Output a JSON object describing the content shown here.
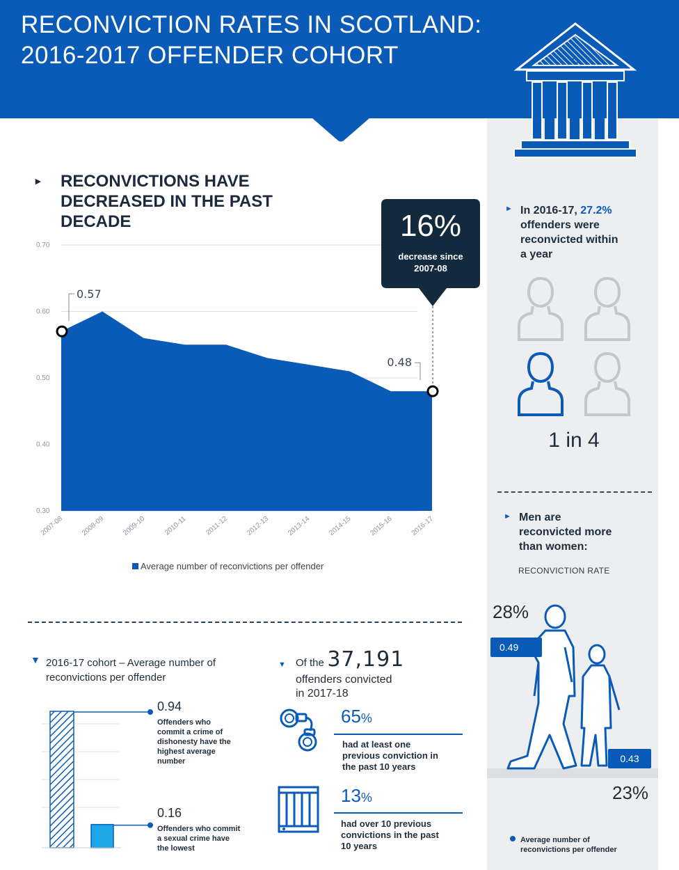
{
  "header": {
    "title_line1": "RECONVICTION RATES IN SCOTLAND:",
    "title_line2": "2016-2017 OFFENDER COHORT"
  },
  "main_chart": {
    "heading_line1": "RECONVICTIONS HAVE",
    "heading_line2": "DECREASED  IN THE PAST",
    "heading_line3": "DECADE",
    "callout_value": "16%",
    "callout_text_line1": "decrease since",
    "callout_text_line2": "2007-08",
    "first_label": "0.57",
    "last_label": "0.48",
    "legend": "Average number of reconvictions per offender"
  },
  "chart_data": [
    {
      "type": "area",
      "x": [
        "2007-08",
        "2008-09",
        "2009-10",
        "2010-11",
        "2011-12",
        "2012-13",
        "2013-14",
        "2014-15",
        "2015-16",
        "2016-17"
      ],
      "series": [
        {
          "name": "Average number of reconvictions per offender",
          "values": [
            0.57,
            0.6,
            0.56,
            0.55,
            0.55,
            0.53,
            0.52,
            0.51,
            0.48,
            0.48
          ]
        }
      ],
      "yticks": [
        "0.70",
        "0.60",
        "0.50",
        "0.40",
        "0.30"
      ],
      "ylim": [
        0.3,
        0.7
      ],
      "grid": true,
      "legend_position": "bottom",
      "color": "#0a5bb8"
    },
    {
      "type": "bar",
      "categories": [
        "Offenders who commit a crime of dishonesty",
        "Offenders who commit a sexual crime"
      ],
      "values": [
        0.94,
        0.16
      ],
      "title": "2016-17 cohort – Average  number  of reconvictions  per offender",
      "colors": [
        "#0a5bb8",
        "#1ea7e8"
      ]
    }
  ],
  "cohort": {
    "heading_line1": "2016-17 cohort – Average  number  of",
    "heading_line2": "reconvictions  per offender",
    "high_value": "0.94",
    "high_desc_line1": "Offenders who",
    "high_desc_line2": "commit a crime  of",
    "high_desc_line3": "dishonesty have the",
    "high_desc_line4": "highest  average",
    "high_desc_line5": "number",
    "low_value": "0.16",
    "low_desc_line1": "Offenders who commit",
    "low_desc_line2": "a  sexual  crime have",
    "low_desc_line3": "the lowest"
  },
  "offenders": {
    "of_the": "Of the",
    "total": "37,191",
    "line2": "offenders convicted",
    "line3": "in 2017-18",
    "stat1_value": "65",
    "stat1_unit": "%",
    "stat1_line1": "had at least one",
    "stat1_line2": "previous conviction in",
    "stat1_line3": "the past 10 years",
    "stat2_value": "13",
    "stat2_unit": "%",
    "stat2_line1": "had over 10 previous",
    "stat2_line2": "convictions in the past",
    "stat2_line3": "10 years"
  },
  "sidebar": {
    "stat_prefix": "In 2016-17,",
    "stat_value": "27.2%",
    "stat_line2": "offenders were",
    "stat_line3": "reconvicted within",
    "stat_line4": "a year",
    "ratio": "1 in 4",
    "men_line1": "Men are",
    "men_line2": "reconvicted more",
    "men_line3": "than women:",
    "rate_label": "RECONVICTION  RATE",
    "men_rate": "28%",
    "men_avg": "0.49",
    "women_rate": "23%",
    "women_avg": "0.43",
    "legend_line1": "Average number of",
    "legend_line2": "reconvictions per offender"
  },
  "colors": {
    "brand_blue": "#0a5bb8",
    "dark_navy": "#13293d",
    "light_blue": "#1ea7e8",
    "gray_icon": "#c4c6c9"
  }
}
